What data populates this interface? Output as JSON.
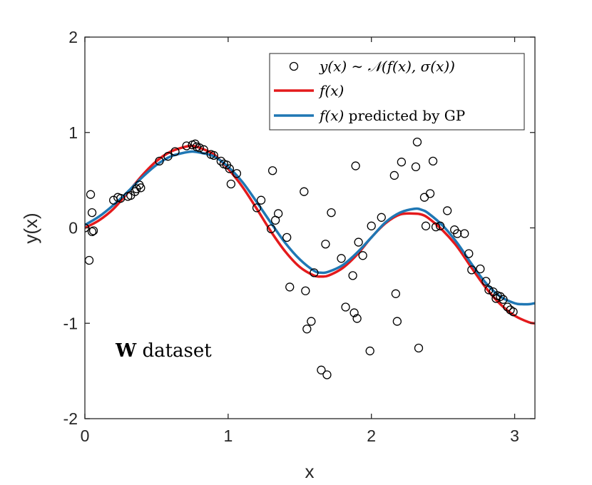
{
  "chart_data": {
    "type": "line",
    "title": "",
    "xlabel": "x",
    "ylabel": "y(x)",
    "xlim": [
      0,
      3.14159
    ],
    "ylim": [
      -2,
      2
    ],
    "xticks": [
      0,
      1,
      2,
      3
    ],
    "yticks": [
      -2,
      -1,
      0,
      1,
      2
    ],
    "xtick_labels": [
      "0",
      "1",
      "2",
      "3"
    ],
    "ytick_labels": [
      "-2",
      "-1",
      "0",
      "1",
      "2"
    ],
    "grid": false,
    "legend_position": "top-right",
    "legend": [
      {
        "key": "samples",
        "marker": "circle",
        "label": "y(x) ∼ 𝒩(f(x), σ(x))"
      },
      {
        "key": "true",
        "line": "#e41a1c",
        "label": "f(x)"
      },
      {
        "key": "gp",
        "line": "#1f77b4",
        "label_main": "f(x)",
        "label_suffix": " predicted by GP"
      }
    ],
    "annotation": {
      "bold": "W",
      "rest": " dataset"
    },
    "colors": {
      "true": "#e41a1c",
      "gp": "#1f77b4",
      "samples": "#000000"
    },
    "series": [
      {
        "name": "f(x)",
        "color": "#e41a1c",
        "x": [
          0,
          0.1,
          0.2,
          0.3,
          0.4,
          0.5,
          0.6,
          0.7,
          0.75,
          0.8,
          0.9,
          1.0,
          1.1,
          1.2,
          1.3,
          1.4,
          1.5,
          1.6,
          1.65,
          1.7,
          1.8,
          1.9,
          2.0,
          2.1,
          2.2,
          2.3,
          2.35,
          2.4,
          2.5,
          2.6,
          2.7,
          2.8,
          2.9,
          3.0,
          3.1,
          3.14
        ],
        "y": [
          0,
          0.08,
          0.2,
          0.37,
          0.55,
          0.7,
          0.8,
          0.85,
          0.86,
          0.84,
          0.77,
          0.62,
          0.43,
          0.2,
          -0.04,
          -0.25,
          -0.41,
          -0.5,
          -0.51,
          -0.5,
          -0.42,
          -0.28,
          -0.1,
          0.05,
          0.14,
          0.15,
          0.14,
          0.1,
          -0.03,
          -0.2,
          -0.42,
          -0.63,
          -0.8,
          -0.92,
          -0.99,
          -1.0
        ]
      },
      {
        "name": "f(x) predicted by GP",
        "color": "#1f77b4",
        "x": [
          0,
          0.1,
          0.2,
          0.3,
          0.4,
          0.5,
          0.6,
          0.7,
          0.75,
          0.8,
          0.9,
          1.0,
          1.1,
          1.2,
          1.3,
          1.4,
          1.5,
          1.6,
          1.65,
          1.7,
          1.8,
          1.9,
          2.0,
          2.1,
          2.2,
          2.3,
          2.35,
          2.4,
          2.5,
          2.6,
          2.7,
          2.8,
          2.9,
          3.0,
          3.05,
          3.1,
          3.14
        ],
        "y": [
          0.03,
          0.12,
          0.24,
          0.38,
          0.53,
          0.66,
          0.75,
          0.79,
          0.8,
          0.79,
          0.75,
          0.64,
          0.48,
          0.27,
          0.05,
          -0.16,
          -0.33,
          -0.45,
          -0.47,
          -0.46,
          -0.39,
          -0.26,
          -0.1,
          0.06,
          0.16,
          0.2,
          0.19,
          0.15,
          0.02,
          -0.16,
          -0.38,
          -0.58,
          -0.72,
          -0.79,
          -0.8,
          -0.8,
          -0.79
        ]
      }
    ],
    "samples": {
      "name": "y(x) ~ N(f(x), sigma(x))",
      "x": [
        0.0,
        0.03,
        0.04,
        0.05,
        0.05,
        0.06,
        0.2,
        0.23,
        0.25,
        0.3,
        0.32,
        0.35,
        0.36,
        0.38,
        0.39,
        0.52,
        0.58,
        0.63,
        0.71,
        0.75,
        0.77,
        0.78,
        0.8,
        0.83,
        0.88,
        0.9,
        0.95,
        0.97,
        0.99,
        1.01,
        1.02,
        1.06,
        1.2,
        1.23,
        1.3,
        1.31,
        1.33,
        1.35,
        1.41,
        1.43,
        1.53,
        1.54,
        1.55,
        1.58,
        1.6,
        1.65,
        1.68,
        1.69,
        1.72,
        1.79,
        1.82,
        1.87,
        1.88,
        1.89,
        1.9,
        1.91,
        1.94,
        1.99,
        2.0,
        2.07,
        2.16,
        2.17,
        2.18,
        2.21,
        2.31,
        2.32,
        2.33,
        2.37,
        2.38,
        2.41,
        2.43,
        2.45,
        2.48,
        2.53,
        2.58,
        2.6,
        2.65,
        2.68,
        2.7,
        2.76,
        2.8,
        2.82,
        2.85,
        2.87,
        2.88,
        2.9,
        2.92,
        2.95,
        2.97,
        2.99
      ],
      "y": [
        0.0,
        -0.34,
        0.35,
        0.16,
        -0.04,
        -0.03,
        0.29,
        0.32,
        0.31,
        0.33,
        0.34,
        0.38,
        0.41,
        0.45,
        0.42,
        0.7,
        0.75,
        0.8,
        0.86,
        0.87,
        0.88,
        0.85,
        0.84,
        0.82,
        0.77,
        0.76,
        0.7,
        0.67,
        0.66,
        0.62,
        0.46,
        0.57,
        0.21,
        0.29,
        -0.01,
        0.6,
        0.08,
        0.15,
        -0.1,
        -0.62,
        0.38,
        -0.66,
        -1.06,
        -0.98,
        -0.47,
        -1.49,
        -0.17,
        -1.54,
        0.16,
        -0.32,
        -0.83,
        -0.5,
        -0.89,
        0.65,
        -0.95,
        -0.15,
        -0.29,
        -1.29,
        0.02,
        0.11,
        0.55,
        -0.69,
        -0.98,
        0.69,
        0.64,
        0.9,
        -1.26,
        0.32,
        0.02,
        0.36,
        0.7,
        0.01,
        0.02,
        0.18,
        -0.02,
        -0.06,
        -0.06,
        -0.27,
        -0.44,
        -0.43,
        -0.56,
        -0.65,
        -0.67,
        -0.74,
        -0.71,
        -0.72,
        -0.75,
        -0.83,
        -0.86,
        -0.88
      ]
    }
  }
}
